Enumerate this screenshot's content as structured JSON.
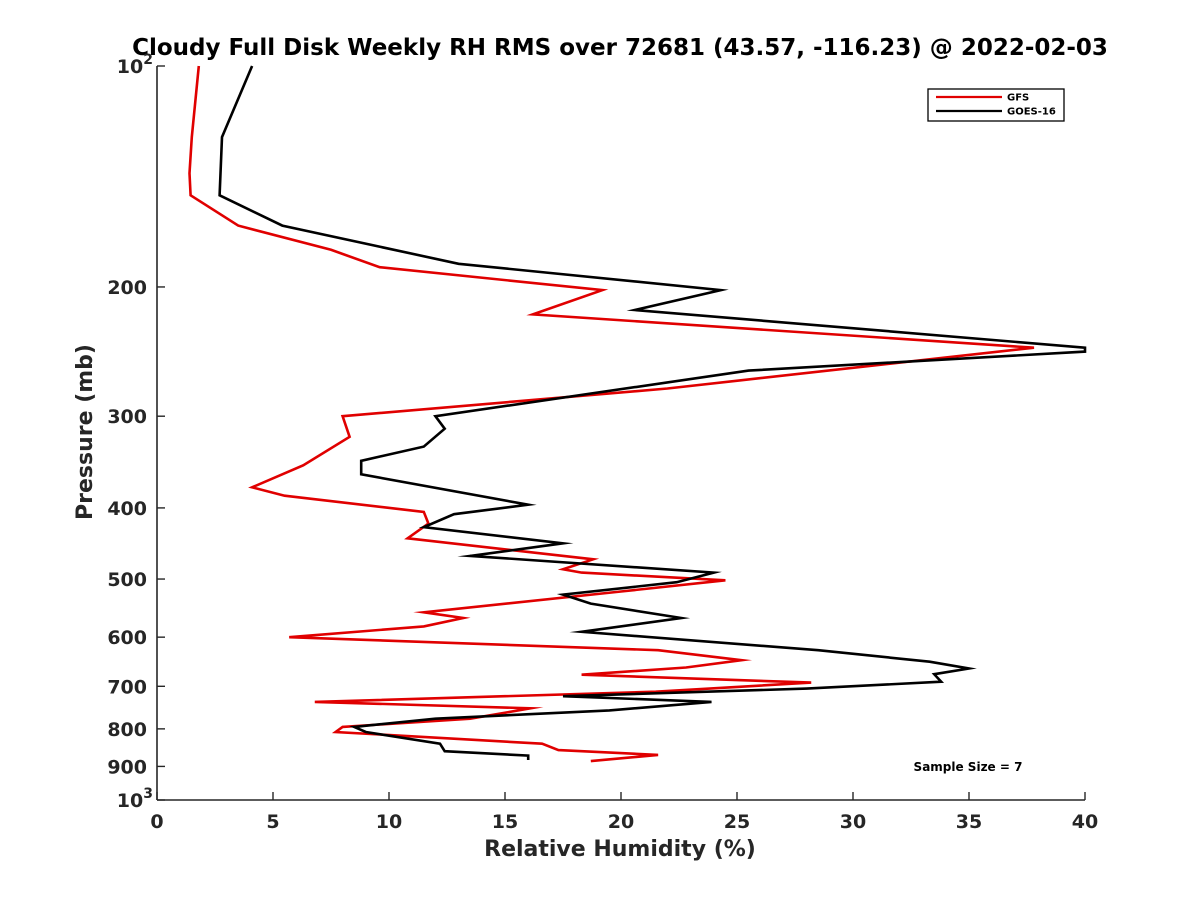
{
  "chart_data": {
    "type": "line",
    "title": "Cloudy Full Disk Weekly RH RMS over 72681 (43.57, -116.23) @ 2022-02-03",
    "xlabel": "Relative Humidity (%)",
    "ylabel": "Pressure (mb)",
    "xlim": [
      0,
      40
    ],
    "ylim": [
      100,
      1000
    ],
    "yscale": "log",
    "yreversed": true,
    "xticks": [
      0,
      5,
      10,
      15,
      20,
      25,
      30,
      35,
      40
    ],
    "yticks": [
      {
        "value": 100,
        "base": "10",
        "exp": "2"
      },
      {
        "value": 200,
        "label": "200"
      },
      {
        "value": 300,
        "label": "300"
      },
      {
        "value": 400,
        "label": "400"
      },
      {
        "value": 500,
        "label": "500"
      },
      {
        "value": 600,
        "label": "600"
      },
      {
        "value": 700,
        "label": "700"
      },
      {
        "value": 800,
        "label": "800"
      },
      {
        "value": 900,
        "label": "900"
      },
      {
        "value": 1000,
        "base": "10",
        "exp": "3"
      }
    ],
    "grid": false,
    "legend_position": "top-right",
    "annotation": "Sample Size = 7",
    "series": [
      {
        "name": "GFS",
        "color": "#e00000",
        "points": [
          [
            1.8,
            100
          ],
          [
            1.5,
            125
          ],
          [
            1.4,
            140
          ],
          [
            1.45,
            150
          ],
          [
            3.5,
            165
          ],
          [
            7.5,
            178
          ],
          [
            9.6,
            188
          ],
          [
            19.2,
            202
          ],
          [
            16.2,
            218
          ],
          [
            37.8,
            242
          ],
          [
            22.0,
            275
          ],
          [
            8.0,
            300
          ],
          [
            8.3,
            320
          ],
          [
            6.3,
            350
          ],
          [
            4.1,
            375
          ],
          [
            5.5,
            385
          ],
          [
            11.5,
            405
          ],
          [
            11.7,
            420
          ],
          [
            10.8,
            440
          ],
          [
            18.8,
            470
          ],
          [
            17.5,
            485
          ],
          [
            18.3,
            490
          ],
          [
            24.5,
            502
          ],
          [
            20.0,
            520
          ],
          [
            11.5,
            555
          ],
          [
            13.2,
            565
          ],
          [
            11.5,
            580
          ],
          [
            5.7,
            600
          ],
          [
            21.6,
            625
          ],
          [
            25.2,
            645
          ],
          [
            22.8,
            660
          ],
          [
            18.3,
            675
          ],
          [
            28.2,
            692
          ],
          [
            21.5,
            712
          ],
          [
            6.8,
            735
          ],
          [
            16.1,
            750
          ],
          [
            13.5,
            775
          ],
          [
            8.0,
            795
          ],
          [
            7.7,
            808
          ],
          [
            16.6,
            838
          ],
          [
            17.3,
            855
          ],
          [
            21.6,
            868
          ],
          [
            18.7,
            885
          ]
        ]
      },
      {
        "name": "GOES-16",
        "color": "#000000",
        "points": [
          [
            4.1,
            100
          ],
          [
            2.8,
            125
          ],
          [
            2.7,
            150
          ],
          [
            5.4,
            165
          ],
          [
            13.0,
            186
          ],
          [
            24.3,
            202
          ],
          [
            20.6,
            215
          ],
          [
            40.0,
            242
          ],
          [
            40.0,
            245
          ],
          [
            25.5,
            260
          ],
          [
            12.0,
            300
          ],
          [
            12.4,
            312
          ],
          [
            11.5,
            330
          ],
          [
            8.8,
            345
          ],
          [
            8.8,
            360
          ],
          [
            16.0,
            396
          ],
          [
            12.8,
            408
          ],
          [
            11.5,
            425
          ],
          [
            17.5,
            447
          ],
          [
            13.5,
            465
          ],
          [
            24.0,
            490
          ],
          [
            22.4,
            505
          ],
          [
            17.5,
            525
          ],
          [
            18.7,
            540
          ],
          [
            22.6,
            565
          ],
          [
            18.3,
            590
          ],
          [
            28.5,
            625
          ],
          [
            33.3,
            648
          ],
          [
            35.0,
            662
          ],
          [
            33.5,
            674
          ],
          [
            33.8,
            690
          ],
          [
            28.0,
            705
          ],
          [
            17.5,
            722
          ],
          [
            23.9,
            735
          ],
          [
            19.5,
            755
          ],
          [
            12.0,
            775
          ],
          [
            8.5,
            795
          ],
          [
            9.0,
            808
          ],
          [
            12.2,
            838
          ],
          [
            12.4,
            858
          ],
          [
            16.0,
            870
          ],
          [
            16.0,
            882
          ]
        ]
      }
    ]
  }
}
